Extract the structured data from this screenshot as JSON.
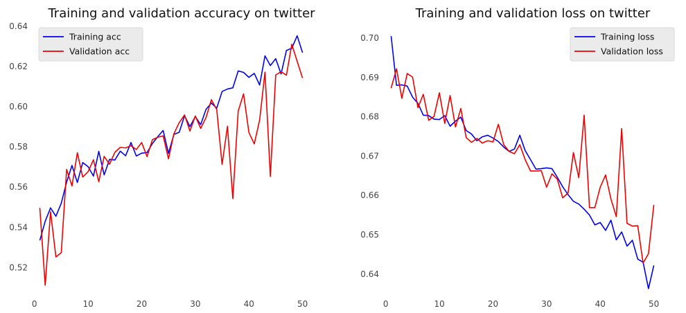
{
  "chart_data": [
    {
      "type": "line",
      "title": "Training and validation accuracy on twitter",
      "xlabel": "",
      "ylabel": "",
      "xlim": [
        -1,
        56
      ],
      "ylim": [
        0.506,
        0.64
      ],
      "xticks": [
        0,
        10,
        20,
        30,
        40,
        50
      ],
      "yticks": [
        0.52,
        0.54,
        0.56,
        0.58,
        0.6,
        0.62,
        0.64
      ],
      "ytick_labels": [
        "0.52",
        "0.54",
        "0.56",
        "0.58",
        "0.60",
        "0.62",
        "0.64"
      ],
      "grid": false,
      "legend": "top-left",
      "x": [
        1,
        2,
        3,
        4,
        5,
        6,
        7,
        8,
        9,
        10,
        11,
        12,
        13,
        14,
        15,
        16,
        17,
        18,
        19,
        20,
        21,
        22,
        23,
        24,
        25,
        26,
        27,
        28,
        29,
        30,
        31,
        32,
        33,
        34,
        35,
        36,
        37,
        38,
        39,
        40,
        41,
        42,
        43,
        44,
        45,
        46,
        47,
        48,
        49,
        50
      ],
      "series": [
        {
          "name": "Training acc",
          "color": "#0000ee",
          "values": [
            0.5335,
            0.543,
            0.5497,
            0.5455,
            0.552,
            0.5625,
            0.5708,
            0.5623,
            0.5722,
            0.5702,
            0.5655,
            0.5778,
            0.5661,
            0.5738,
            0.5735,
            0.5779,
            0.5756,
            0.5822,
            0.5755,
            0.5769,
            0.5772,
            0.5817,
            0.5851,
            0.5882,
            0.5768,
            0.5862,
            0.5873,
            0.5955,
            0.5901,
            0.5951,
            0.5911,
            0.5987,
            0.6018,
            0.5993,
            0.6076,
            0.6088,
            0.6094,
            0.6178,
            0.6171,
            0.6146,
            0.6166,
            0.6108,
            0.6253,
            0.6205,
            0.6239,
            0.6163,
            0.628,
            0.6291,
            0.6353,
            0.6269
          ]
        },
        {
          "name": "Validation acc",
          "color": "#ee0000",
          "values": [
            0.5497,
            0.5112,
            0.5478,
            0.5253,
            0.5274,
            0.5688,
            0.5606,
            0.5771,
            0.565,
            0.5677,
            0.5736,
            0.5627,
            0.5753,
            0.5714,
            0.5773,
            0.5798,
            0.5795,
            0.5806,
            0.5787,
            0.5822,
            0.5752,
            0.5836,
            0.5848,
            0.5855,
            0.5741,
            0.5865,
            0.5921,
            0.5959,
            0.5879,
            0.5954,
            0.5892,
            0.5946,
            0.6035,
            0.5986,
            0.5713,
            0.5903,
            0.5543,
            0.5978,
            0.6064,
            0.5872,
            0.5815,
            0.5934,
            0.6172,
            0.5653,
            0.6158,
            0.6174,
            0.6157,
            0.6311,
            0.6226,
            0.6143
          ]
        }
      ]
    },
    {
      "type": "line",
      "title": "Training and validation loss on twitter",
      "xlabel": "",
      "ylabel": "",
      "xlim": [
        -1,
        56
      ],
      "ylim": [
        0.6345,
        0.703
      ],
      "xticks": [
        0,
        10,
        20,
        30,
        40,
        50
      ],
      "yticks": [
        0.64,
        0.65,
        0.66,
        0.67,
        0.68,
        0.69,
        0.7
      ],
      "ytick_labels": [
        "0.64",
        "0.65",
        "0.66",
        "0.67",
        "0.68",
        "0.69",
        "0.70"
      ],
      "grid": false,
      "legend": "top-right",
      "x": [
        1,
        2,
        3,
        4,
        5,
        6,
        7,
        8,
        9,
        10,
        11,
        12,
        13,
        14,
        15,
        16,
        17,
        18,
        19,
        20,
        21,
        22,
        23,
        24,
        25,
        26,
        27,
        28,
        29,
        30,
        31,
        32,
        33,
        34,
        35,
        36,
        37,
        38,
        39,
        40,
        41,
        42,
        43,
        44,
        45,
        46,
        47,
        48,
        49,
        50
      ],
      "series": [
        {
          "name": "Training loss",
          "color": "#0000ee",
          "values": [
            0.7005,
            0.688,
            0.6881,
            0.6878,
            0.685,
            0.6834,
            0.6804,
            0.6803,
            0.6794,
            0.6793,
            0.6803,
            0.6776,
            0.6789,
            0.6799,
            0.6765,
            0.6756,
            0.6739,
            0.6749,
            0.6753,
            0.6746,
            0.6737,
            0.6723,
            0.6712,
            0.6718,
            0.6753,
            0.6714,
            0.6691,
            0.6667,
            0.6668,
            0.667,
            0.6668,
            0.6646,
            0.6622,
            0.6602,
            0.6585,
            0.6578,
            0.6565,
            0.655,
            0.6525,
            0.6531,
            0.6511,
            0.6537,
            0.6487,
            0.6507,
            0.6471,
            0.6486,
            0.6438,
            0.643,
            0.6363,
            0.6422
          ]
        },
        {
          "name": "Validation loss",
          "color": "#ee0000",
          "values": [
            0.6873,
            0.6922,
            0.6847,
            0.691,
            0.6901,
            0.6823,
            0.6857,
            0.6791,
            0.6801,
            0.6861,
            0.6783,
            0.6854,
            0.6774,
            0.6821,
            0.6747,
            0.6735,
            0.6745,
            0.6733,
            0.6739,
            0.6736,
            0.6781,
            0.6729,
            0.6712,
            0.6706,
            0.6729,
            0.6691,
            0.6662,
            0.6662,
            0.6663,
            0.6621,
            0.6655,
            0.6641,
            0.6594,
            0.6606,
            0.6709,
            0.6645,
            0.6804,
            0.6569,
            0.6569,
            0.6621,
            0.6652,
            0.6591,
            0.6546,
            0.677,
            0.6529,
            0.6522,
            0.6523,
            0.6428,
            0.6452,
            0.6576
          ]
        }
      ]
    }
  ]
}
